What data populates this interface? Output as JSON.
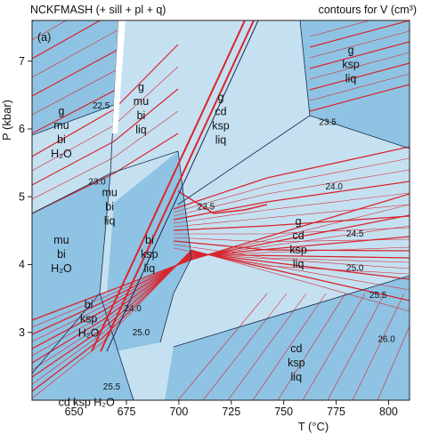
{
  "chart_data": {
    "type": "phase-diagram",
    "title": "NCKFMASH (+ sill + pl + q)",
    "subtitle": "contours for V (cm³)",
    "panel_label": "(a)",
    "xlabel": "T (°C)",
    "ylabel": "P (kbar)",
    "xlim": [
      630,
      810
    ],
    "ylim": [
      2.0,
      7.6
    ],
    "xticks": [
      "650",
      "675",
      "700",
      "725",
      "750",
      "775",
      "800"
    ],
    "yticks": [
      "3",
      "4",
      "5",
      "6",
      "7"
    ],
    "colors": {
      "light_field": "#c5e1f1",
      "dark_field": "#8fc3e3",
      "melt_sliver": "#ffffff",
      "contour": "#d8262e",
      "boundary": "#1a2a4a"
    },
    "fields": [
      {
        "label": [
          "g",
          "mu",
          "bi",
          "H₂O"
        ],
        "shade": "dark",
        "at": [
          644,
          5.95
        ]
      },
      {
        "label": [
          "g",
          "mu",
          "bi",
          "liq"
        ],
        "shade": "light",
        "at": [
          682,
          6.3
        ]
      },
      {
        "label": [
          "g",
          "cd",
          "ksp",
          "liq"
        ],
        "shade": "light",
        "at": [
          720,
          6.15
        ]
      },
      {
        "label": [
          "g",
          "ksp",
          "liq"
        ],
        "shade": "dark",
        "at": [
          782,
          6.95
        ]
      },
      {
        "label": [
          "mu",
          "bi",
          "liq"
        ],
        "shade": "light",
        "at": [
          667,
          4.85
        ]
      },
      {
        "label": [
          "mu",
          "bi",
          "H₂O"
        ],
        "shade": "dark",
        "at": [
          644,
          4.15
        ]
      },
      {
        "label": [
          "bi",
          "ksp",
          "liq"
        ],
        "shade": "dark",
        "at": [
          686,
          4.15
        ]
      },
      {
        "label": [
          "g",
          "cd",
          "ksp",
          "liq"
        ],
        "shade": "light",
        "at": [
          757,
          4.32
        ]
      },
      {
        "label": [
          "bi",
          "ksp",
          "H₂O"
        ],
        "shade": "dark",
        "at": [
          657,
          3.2
        ]
      },
      {
        "label": [
          "cd",
          "ksp",
          "liq"
        ],
        "shade": "dark",
        "at": [
          756,
          2.55
        ]
      },
      {
        "label": [
          "cd ksp H₂O"
        ],
        "shade": "dark",
        "at": [
          656,
          1.97
        ]
      }
    ],
    "contour_labels": [
      {
        "text": "22.5",
        "at": [
          663,
          6.34
        ]
      },
      {
        "text": "23.0",
        "at": [
          661,
          5.22
        ]
      },
      {
        "text": "23.5",
        "at": [
          713,
          4.85
        ]
      },
      {
        "text": "23.5",
        "at": [
          771,
          6.1
        ]
      },
      {
        "text": "24.0",
        "at": [
          774,
          5.15
        ]
      },
      {
        "text": "24.0",
        "at": [
          678,
          3.35
        ]
      },
      {
        "text": "24.5",
        "at": [
          784,
          4.45
        ]
      },
      {
        "text": "25.0",
        "at": [
          682,
          3.0
        ]
      },
      {
        "text": "25.0",
        "at": [
          784,
          3.95
        ]
      },
      {
        "text": "25.5",
        "at": [
          795,
          3.55
        ]
      },
      {
        "text": "25.5",
        "at": [
          668,
          2.2
        ]
      },
      {
        "text": "26.0",
        "at": [
          799,
          2.9
        ]
      }
    ]
  }
}
